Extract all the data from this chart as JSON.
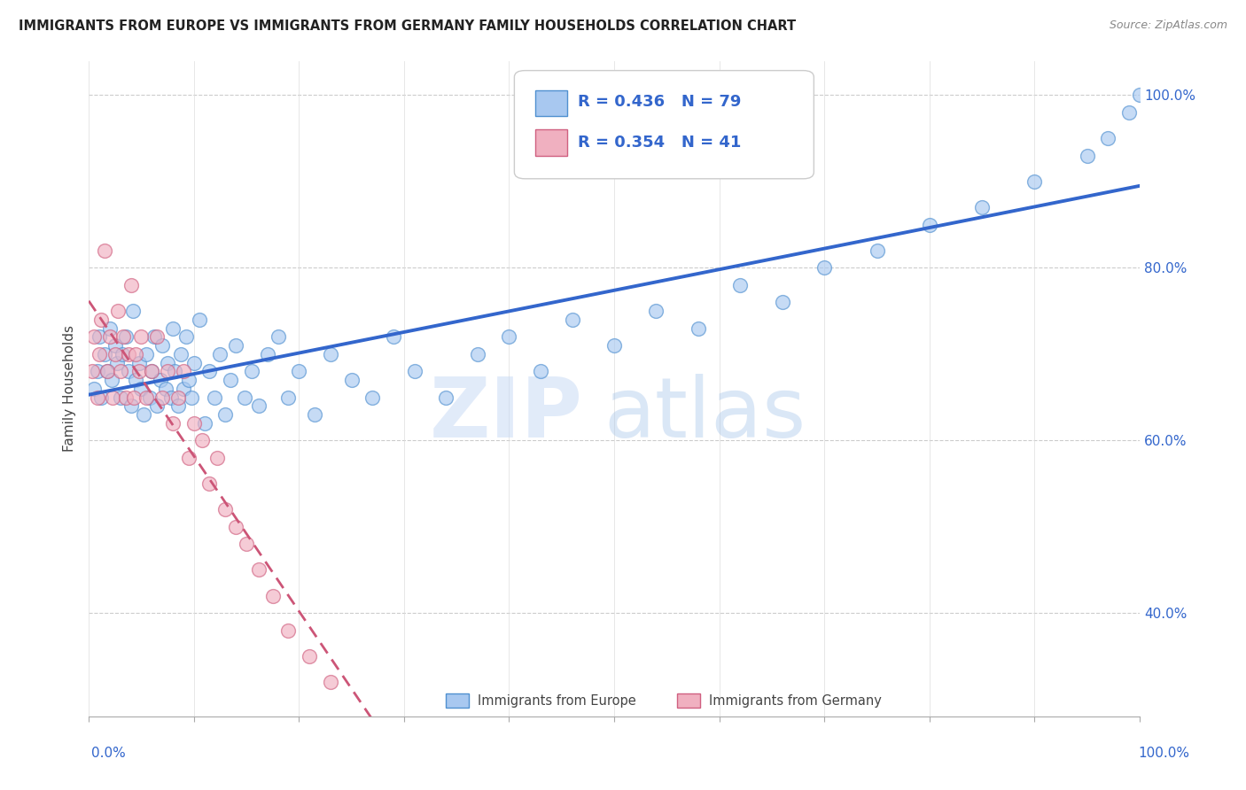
{
  "title": "IMMIGRANTS FROM EUROPE VS IMMIGRANTS FROM GERMANY FAMILY HOUSEHOLDS CORRELATION CHART",
  "source": "Source: ZipAtlas.com",
  "ylabel": "Family Households",
  "ytick_values": [
    0.4,
    0.6,
    0.8,
    1.0
  ],
  "ytick_labels": [
    "40.0%",
    "60.0%",
    "80.0%",
    "100.0%"
  ],
  "legend_blue_r": "R = 0.436",
  "legend_blue_n": "N = 79",
  "legend_pink_r": "R = 0.354",
  "legend_pink_n": "N = 41",
  "blue_fill": "#A8C8F0",
  "blue_edge": "#5090D0",
  "pink_fill": "#F0B0C0",
  "pink_edge": "#D06080",
  "blue_line": "#3366CC",
  "pink_line": "#CC5577",
  "blue_scatter_x": [
    0.005,
    0.008,
    0.01,
    0.012,
    0.015,
    0.018,
    0.02,
    0.022,
    0.025,
    0.027,
    0.03,
    0.032,
    0.035,
    0.038,
    0.04,
    0.042,
    0.045,
    0.048,
    0.05,
    0.052,
    0.055,
    0.058,
    0.06,
    0.062,
    0.065,
    0.068,
    0.07,
    0.073,
    0.075,
    0.078,
    0.08,
    0.082,
    0.085,
    0.088,
    0.09,
    0.093,
    0.095,
    0.098,
    0.1,
    0.105,
    0.11,
    0.115,
    0.12,
    0.125,
    0.13,
    0.135,
    0.14,
    0.148,
    0.155,
    0.162,
    0.17,
    0.18,
    0.19,
    0.2,
    0.215,
    0.23,
    0.25,
    0.27,
    0.29,
    0.31,
    0.34,
    0.37,
    0.4,
    0.43,
    0.46,
    0.5,
    0.54,
    0.58,
    0.62,
    0.66,
    0.7,
    0.75,
    0.8,
    0.85,
    0.9,
    0.95,
    0.97,
    0.99,
    1.0
  ],
  "blue_scatter_y": [
    0.66,
    0.68,
    0.72,
    0.65,
    0.7,
    0.68,
    0.73,
    0.67,
    0.71,
    0.69,
    0.65,
    0.7,
    0.72,
    0.68,
    0.64,
    0.75,
    0.67,
    0.69,
    0.66,
    0.63,
    0.7,
    0.65,
    0.68,
    0.72,
    0.64,
    0.67,
    0.71,
    0.66,
    0.69,
    0.65,
    0.73,
    0.68,
    0.64,
    0.7,
    0.66,
    0.72,
    0.67,
    0.65,
    0.69,
    0.74,
    0.62,
    0.68,
    0.65,
    0.7,
    0.63,
    0.67,
    0.71,
    0.65,
    0.68,
    0.64,
    0.7,
    0.72,
    0.65,
    0.68,
    0.63,
    0.7,
    0.67,
    0.65,
    0.72,
    0.68,
    0.65,
    0.7,
    0.72,
    0.68,
    0.74,
    0.71,
    0.75,
    0.73,
    0.78,
    0.76,
    0.8,
    0.82,
    0.85,
    0.87,
    0.9,
    0.93,
    0.95,
    0.98,
    1.0
  ],
  "pink_scatter_x": [
    0.003,
    0.005,
    0.008,
    0.01,
    0.012,
    0.015,
    0.018,
    0.02,
    0.023,
    0.025,
    0.028,
    0.03,
    0.033,
    0.035,
    0.038,
    0.04,
    0.043,
    0.045,
    0.048,
    0.05,
    0.055,
    0.06,
    0.065,
    0.07,
    0.075,
    0.08,
    0.085,
    0.09,
    0.095,
    0.1,
    0.108,
    0.115,
    0.122,
    0.13,
    0.14,
    0.15,
    0.162,
    0.175,
    0.19,
    0.21,
    0.23
  ],
  "pink_scatter_y": [
    0.68,
    0.72,
    0.65,
    0.7,
    0.74,
    0.82,
    0.68,
    0.72,
    0.65,
    0.7,
    0.75,
    0.68,
    0.72,
    0.65,
    0.7,
    0.78,
    0.65,
    0.7,
    0.68,
    0.72,
    0.65,
    0.68,
    0.72,
    0.65,
    0.68,
    0.62,
    0.65,
    0.68,
    0.58,
    0.62,
    0.6,
    0.55,
    0.58,
    0.52,
    0.5,
    0.48,
    0.45,
    0.42,
    0.38,
    0.35,
    0.32
  ],
  "watermark_zip": "ZIP",
  "watermark_atlas": "atlas",
  "xlim": [
    0.0,
    1.0
  ],
  "ylim": [
    0.28,
    1.04
  ],
  "title_fontsize": 10.5,
  "source_fontsize": 9
}
